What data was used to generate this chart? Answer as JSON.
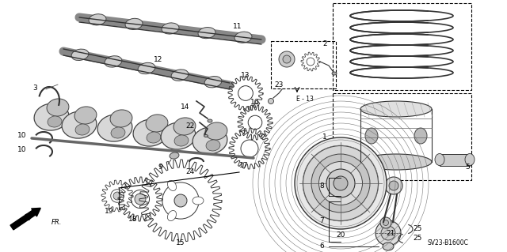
{
  "background_color": "#ffffff",
  "diagram_code_ref": "SV23-B1600C",
  "label_fontsize": 6.5,
  "ref_fontsize": 5.5,
  "lc": "#444444",
  "lw_main": 0.7
}
